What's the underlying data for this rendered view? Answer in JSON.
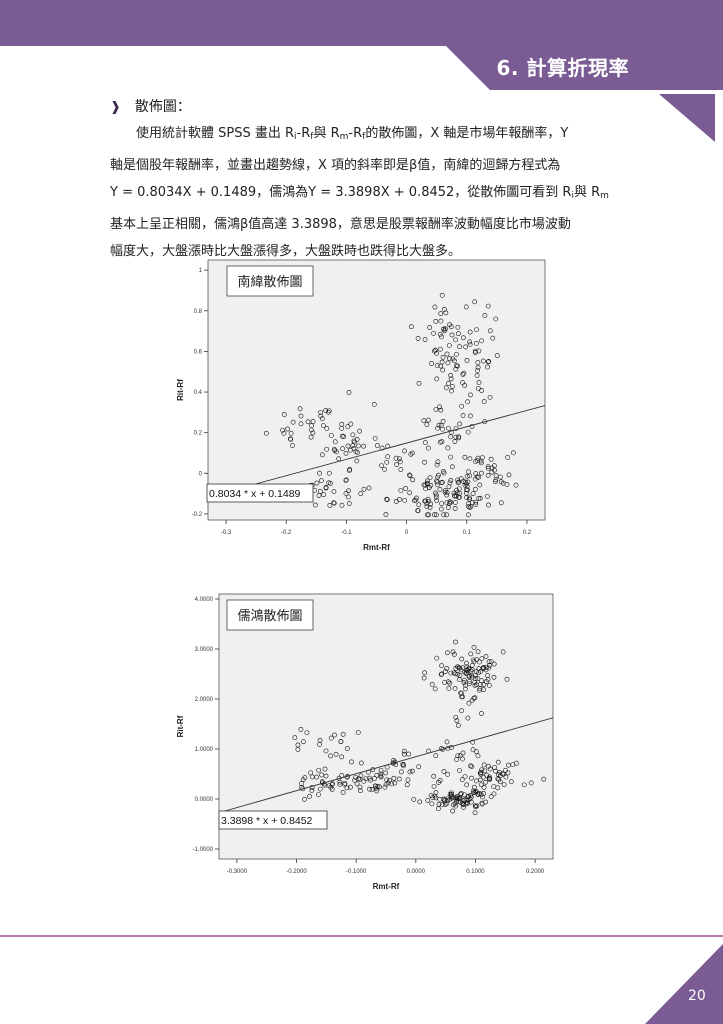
{
  "header": {
    "chapter_title": "6. 計算折現率"
  },
  "section": {
    "heading": "散佈圖："
  },
  "paragraph": {
    "l1_a": "使用統計軟體 SPSS 畫出 R",
    "l1_sub1": "i",
    "l1_b": "-R",
    "l1_sub2": "f",
    "l1_c": "與 R",
    "l1_sub3": "m",
    "l1_d": "-R",
    "l1_sub4": "f",
    "l1_e": "的散佈圖，X 軸是市場年報酬率，Y",
    "l2": "軸是個股年報酬率，並畫出趨勢線，X 項的斜率即是β值，南緯的迴歸方程式為",
    "l3_a": "Y = 0.8034X + 0.1489，儒鴻為Y = 3.3898X + 0.8452，從散佈圖可看到 R",
    "l3_sub1": "i",
    "l3_b": "與 R",
    "l3_sub2": "m",
    "l4": "基本上呈正相關，儒鴻β值高達 3.3898，意思是股票報酬率波動幅度比市場波動",
    "l5": "幅度大，大盤漲時比大盤漲得多，大盤跌時也跌得比大盤多。"
  },
  "chart_data": [
    {
      "type": "scatter",
      "title": "南緯散佈圖",
      "xlabel": "Rmt-Rf",
      "ylabel": "Rit-Rf",
      "xlim": [
        -0.33,
        0.23
      ],
      "ylim": [
        -0.23,
        1.05
      ],
      "xticks": [
        -0.3,
        -0.2,
        -0.1,
        0,
        0.1,
        0.2
      ],
      "xtick_labels": [
        "-0.3",
        "-0.2",
        "-0.1",
        "0",
        "0.1",
        "0.2"
      ],
      "yticks": [
        -0.2,
        0,
        0.2,
        0.4,
        0.6,
        0.8,
        1
      ],
      "ytick_labels": [
        "-0.2",
        "0",
        "0.2",
        "0.4",
        "0.6",
        "0.8",
        "1"
      ],
      "trendline": {
        "slope": 0.8034,
        "intercept": 0.1489,
        "label": "0.8034 * x + 0.1489"
      },
      "grid": false,
      "seed": 11,
      "clusters": [
        {
          "cx": -0.17,
          "cy": 0.24,
          "sx": 0.025,
          "sy": 0.06,
          "n": 25
        },
        {
          "cx": -0.1,
          "cy": 0.18,
          "sx": 0.02,
          "sy": 0.08,
          "n": 35
        },
        {
          "cx": -0.12,
          "cy": -0.08,
          "sx": 0.04,
          "sy": 0.05,
          "n": 35
        },
        {
          "cx": -0.02,
          "cy": 0.06,
          "sx": 0.02,
          "sy": 0.05,
          "n": 15
        },
        {
          "cx": 0.07,
          "cy": 0.58,
          "sx": 0.022,
          "sy": 0.16,
          "n": 70
        },
        {
          "cx": 0.125,
          "cy": 0.6,
          "sx": 0.015,
          "sy": 0.15,
          "n": 30
        },
        {
          "cx": 0.06,
          "cy": -0.1,
          "sx": 0.035,
          "sy": 0.06,
          "n": 110
        },
        {
          "cx": 0.14,
          "cy": 0.0,
          "sx": 0.03,
          "sy": 0.06,
          "n": 40
        },
        {
          "cx": 0.05,
          "cy": 0.2,
          "sx": 0.03,
          "sy": 0.07,
          "n": 25
        }
      ]
    },
    {
      "type": "scatter",
      "title": "儒鴻散佈圖",
      "xlabel": "Rmt-Rf",
      "ylabel": "Rit-Rf",
      "xlim": [
        -0.33,
        0.23
      ],
      "ylim": [
        -1.2,
        4.1
      ],
      "xticks": [
        -0.3,
        -0.2,
        -0.1,
        0,
        0.1,
        0.2
      ],
      "xtick_labels": [
        "-0.3000",
        "-0.2000",
        "-0.1000",
        "0.0000",
        "0.1000",
        "0.2000"
      ],
      "yticks": [
        -1,
        0,
        1,
        2,
        3,
        4
      ],
      "ytick_labels": [
        "-1.0000",
        "0.0000",
        "1.0000",
        "2.0000",
        "3.0000",
        "4.0000"
      ],
      "trendline": {
        "slope": 3.3898,
        "intercept": 0.8452,
        "label": "3.3898 * x + 0.8452"
      },
      "grid": false,
      "seed": 23,
      "clusters": [
        {
          "cx": -0.17,
          "cy": 1.15,
          "sx": 0.025,
          "sy": 0.15,
          "n": 10
        },
        {
          "cx": -0.11,
          "cy": 1.0,
          "sx": 0.015,
          "sy": 0.15,
          "n": 10
        },
        {
          "cx": -0.16,
          "cy": 0.3,
          "sx": 0.025,
          "sy": 0.12,
          "n": 30
        },
        {
          "cx": -0.09,
          "cy": 0.35,
          "sx": 0.03,
          "sy": 0.12,
          "n": 45
        },
        {
          "cx": -0.03,
          "cy": 0.65,
          "sx": 0.02,
          "sy": 0.12,
          "n": 20
        },
        {
          "cx": 0.085,
          "cy": 2.45,
          "sx": 0.028,
          "sy": 0.33,
          "n": 110
        },
        {
          "cx": 0.07,
          "cy": 0.0,
          "sx": 0.025,
          "sy": 0.1,
          "n": 80
        },
        {
          "cx": 0.12,
          "cy": 0.45,
          "sx": 0.04,
          "sy": 0.15,
          "n": 60
        },
        {
          "cx": 0.06,
          "cy": 0.9,
          "sx": 0.02,
          "sy": 0.1,
          "n": 15
        }
      ]
    }
  ],
  "footer": {
    "page_number": "20"
  }
}
